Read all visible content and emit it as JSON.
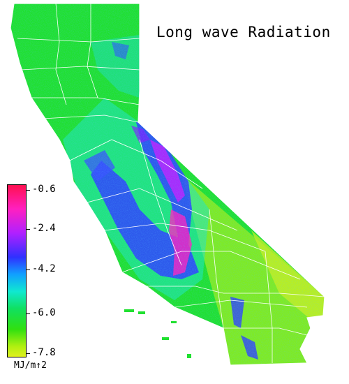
{
  "title": "Long wave Radiation",
  "legend": {
    "ticks": [
      "-0.6",
      "-2.4",
      "-4.2",
      "-6.0",
      "-7.8"
    ],
    "units": "MJ/m↑2"
  },
  "colors": {
    "background": "#ffffff",
    "max": "#ff1050",
    "high": "#ff20c0",
    "mid_high": "#3030ff",
    "mid": "#10e8d0",
    "low": "#30e010",
    "min": "#e0f020",
    "boundaries": "#ffffff"
  }
}
